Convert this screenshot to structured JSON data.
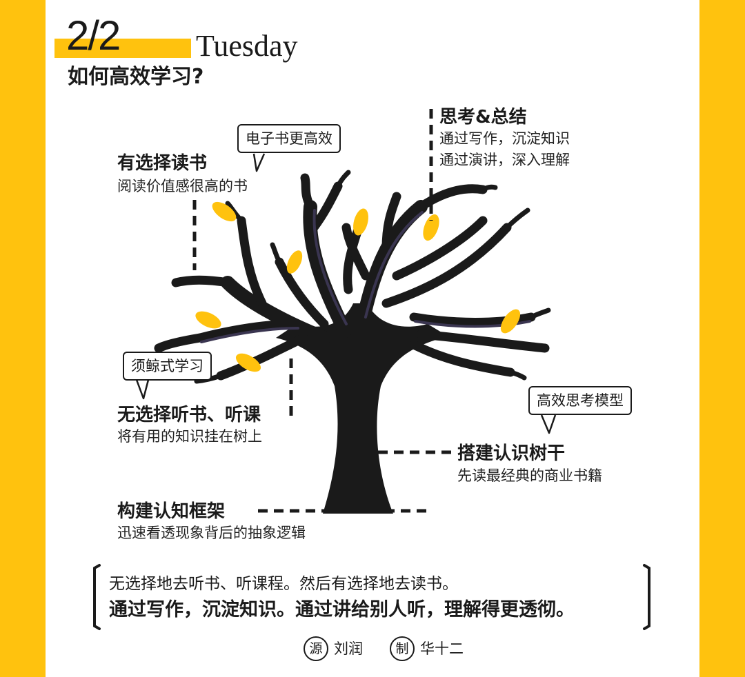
{
  "header": {
    "date": "2/2",
    "weekday": "Tuesday",
    "title": "如何高效学习?"
  },
  "sections": {
    "selective_reading": {
      "heading": "有选择读书",
      "sub": "阅读价值感很高的书",
      "bubble": "电子书更高效"
    },
    "thinking": {
      "heading": "思考&总结",
      "line1": "通过写作，沉淀知识",
      "line2": "通过演讲，深入理解"
    },
    "non_selective": {
      "heading": "无选择听书、听课",
      "sub": "将有用的知识挂在树上",
      "bubble": "须鲸式学习"
    },
    "trunk": {
      "heading": "搭建认识树干",
      "sub": "先读最经典的商业书籍",
      "bubble": "高效思考模型"
    },
    "framework": {
      "heading": "构建认知框架",
      "sub": "迅速看透现象背后的抽象逻辑"
    }
  },
  "quote": {
    "line1": "无选择地去听书、听课程。然后有选择地去读书。",
    "line2": "通过写作，沉淀知识。通过讲给别人听，理解得更透彻。"
  },
  "credits": {
    "source_label": "源",
    "source_name": "刘润",
    "maker_label": "制",
    "maker_name": "华十二"
  },
  "colors": {
    "accent": "#FFC20E",
    "tree": "#1a1a1a",
    "tree_highlight": "#3a3550"
  }
}
